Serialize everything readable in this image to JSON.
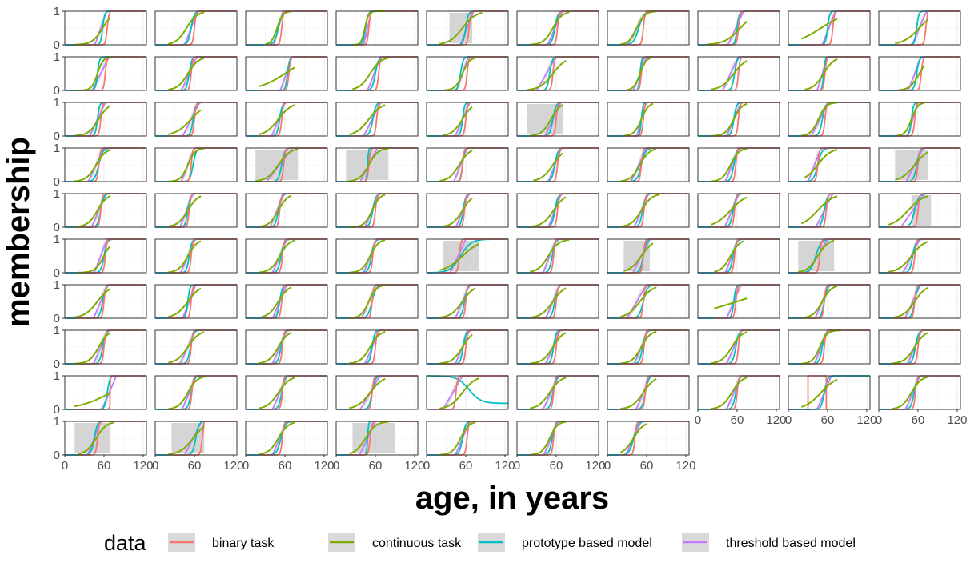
{
  "chart_data": {
    "type": "line",
    "layout": "small-multiples",
    "facet_grid": {
      "rows": 10,
      "columns": 10,
      "panel_count": 97
    },
    "xlabel": "age, in years",
    "ylabel": "membership",
    "xlim": [
      0,
      125
    ],
    "ylim": [
      0,
      1
    ],
    "x_ticks": [
      "0",
      "60",
      "120"
    ],
    "y_ticks": [
      "0",
      "1"
    ],
    "grid": true,
    "legend": {
      "title": "data",
      "position": "bottom",
      "entries": [
        {
          "label": "binary task",
          "color": "#F8766D"
        },
        {
          "label": "continuous task",
          "color": "#7CAE00"
        },
        {
          "label": "prototype based model",
          "color": "#00BFC4"
        },
        {
          "label": "threshold based model",
          "color": "#C77CFF"
        }
      ]
    },
    "series_colors": {
      "binary": "#F8766D",
      "continuous": "#7CAE00",
      "prototype": "#00BFC4",
      "threshold": "#C77CFF",
      "ribbon": "#BEBEBE"
    },
    "panels": [
      {
        "t": 55,
        "tw": 18,
        "bs": 65,
        "cc": 58,
        "cs": 40,
        "lo": 15,
        "hi": 70,
        "ps": 58,
        "pw": 4
      },
      {
        "t": 55,
        "tw": 20,
        "bs": 60,
        "cc": 48,
        "cs": 40,
        "lo": 20,
        "hi": 75,
        "ps": 55,
        "pw": 6
      },
      {
        "t": 50,
        "tw": 14,
        "bs": 55,
        "cc": 48,
        "cs": 22,
        "lo": 30,
        "hi": 70,
        "ps": 50,
        "pw": 8
      },
      {
        "t": 48,
        "tw": 12,
        "bs": 50,
        "cc": 44,
        "cs": 14,
        "lo": 25,
        "hi": 75,
        "ps": 45,
        "pw": 5
      },
      {
        "t": 62,
        "tw": 20,
        "bs": 65,
        "cc": 55,
        "cs": 50,
        "lo": 20,
        "hi": 85,
        "ps": 60,
        "pw": 5,
        "rb": [
          35,
          70
        ]
      },
      {
        "t": 58,
        "tw": 22,
        "bs": 62,
        "cc": 55,
        "cs": 36,
        "lo": 20,
        "hi": 80,
        "ps": 58,
        "pw": 6
      },
      {
        "t": 45,
        "tw": 30,
        "bs": 55,
        "cc": 45,
        "cs": 30,
        "lo": 20,
        "hi": 75,
        "ps": 48,
        "pw": 10
      },
      {
        "t": 58,
        "tw": 24,
        "bs": 62,
        "cc": 65,
        "cs": 60,
        "lo": 15,
        "hi": 75,
        "ps": 60,
        "pw": 4
      },
      {
        "t": 62,
        "tw": 20,
        "bs": 68,
        "cc": 50,
        "cs": 100,
        "lo": 20,
        "hi": 75,
        "ps": 60,
        "pw": 4
      },
      {
        "t": 62,
        "tw": 22,
        "bs": 72,
        "cc": 62,
        "cs": 60,
        "lo": 25,
        "hi": 75,
        "ps": 58,
        "pw": 4
      },
      {
        "t": 55,
        "tw": 26,
        "bs": 62,
        "cc": 50,
        "cs": 22,
        "lo": 15,
        "hi": 75,
        "ps": 50,
        "pw": 4
      },
      {
        "t": 52,
        "tw": 24,
        "bs": 55,
        "cc": 50,
        "cs": 40,
        "lo": 20,
        "hi": 75,
        "ps": 52,
        "pw": 5
      },
      {
        "t": 62,
        "tw": 18,
        "bs": 66,
        "cc": 60,
        "cs": 100,
        "lo": 20,
        "hi": 75,
        "ps": 64,
        "pw": 4
      },
      {
        "t": 58,
        "tw": 20,
        "bs": 65,
        "cc": 52,
        "cs": 42,
        "lo": 25,
        "hi": 80,
        "ps": 60,
        "pw": 6
      },
      {
        "t": 55,
        "tw": 18,
        "bs": 62,
        "cc": 55,
        "cs": 28,
        "lo": 25,
        "hi": 75,
        "ps": 52,
        "pw": 5
      },
      {
        "t": 45,
        "tw": 30,
        "bs": 55,
        "cc": 55,
        "cs": 50,
        "lo": 15,
        "hi": 75,
        "ps": 50,
        "pw": 5
      },
      {
        "t": 50,
        "tw": 20,
        "bs": 52,
        "cc": 50,
        "cs": 24,
        "lo": 30,
        "hi": 70,
        "ps": 50,
        "pw": 3
      },
      {
        "t": 50,
        "tw": 24,
        "bs": 62,
        "cc": 55,
        "cs": 50,
        "lo": 20,
        "hi": 75,
        "ps": 56,
        "pw": 5
      },
      {
        "t": 52,
        "tw": 16,
        "bs": 56,
        "cc": 54,
        "cs": 40,
        "lo": 25,
        "hi": 75,
        "ps": 54,
        "pw": 3
      },
      {
        "t": 55,
        "tw": 20,
        "bs": 65,
        "cc": 62,
        "cs": 36,
        "lo": 30,
        "hi": 70,
        "ps": 58,
        "pw": 5
      },
      {
        "t": 50,
        "tw": 24,
        "bs": 55,
        "cc": 52,
        "cs": 40,
        "lo": 15,
        "hi": 70,
        "ps": 50,
        "pw": 4
      },
      {
        "t": 55,
        "tw": 26,
        "bs": 60,
        "cc": 55,
        "cs": 60,
        "lo": 20,
        "hi": 70,
        "ps": 58,
        "pw": 5
      },
      {
        "t": 50,
        "tw": 20,
        "bs": 55,
        "cc": 50,
        "cs": 50,
        "lo": 20,
        "hi": 75,
        "ps": 52,
        "pw": 5
      },
      {
        "t": 55,
        "tw": 26,
        "bs": 62,
        "cc": 50,
        "cs": 50,
        "lo": 20,
        "hi": 75,
        "ps": 56,
        "pw": 6
      },
      {
        "t": 55,
        "tw": 22,
        "bs": 60,
        "cc": 55,
        "cs": 40,
        "lo": 25,
        "hi": 70,
        "ps": 55,
        "pw": 4
      },
      {
        "t": 55,
        "tw": 24,
        "bs": 60,
        "cc": 52,
        "cs": 36,
        "lo": 20,
        "hi": 70,
        "ps": 55,
        "pw": 6,
        "rb": [
          15,
          70
        ]
      },
      {
        "t": 52,
        "tw": 14,
        "bs": 55,
        "cc": 52,
        "cs": 28,
        "lo": 25,
        "hi": 70,
        "ps": 52,
        "pw": 3
      },
      {
        "t": 55,
        "tw": 22,
        "bs": 62,
        "cc": 55,
        "cs": 32,
        "lo": 20,
        "hi": 75,
        "ps": 55,
        "pw": 5
      },
      {
        "t": 48,
        "tw": 26,
        "bs": 56,
        "cc": 46,
        "cs": 30,
        "lo": 20,
        "hi": 75,
        "ps": 52,
        "pw": 6
      },
      {
        "t": 52,
        "tw": 16,
        "bs": 55,
        "cc": 50,
        "cs": 24,
        "lo": 25,
        "hi": 70,
        "ps": 50,
        "pw": 4
      },
      {
        "t": 48,
        "tw": 24,
        "bs": 52,
        "cc": 48,
        "cs": 38,
        "lo": 15,
        "hi": 70,
        "ps": 52,
        "pw": 8
      },
      {
        "t": 50,
        "tw": 20,
        "bs": 55,
        "cc": 50,
        "cs": 28,
        "lo": 20,
        "hi": 75,
        "ps": 58,
        "pw": 6
      },
      {
        "t": 52,
        "tw": 40,
        "bs": 58,
        "cc": 50,
        "cs": 44,
        "lo": 15,
        "hi": 80,
        "ps": 55,
        "pw": 6,
        "rb": [
          15,
          80
        ]
      },
      {
        "t": 50,
        "tw": 26,
        "bs": 50,
        "cc": 50,
        "cs": 36,
        "lo": 15,
        "hi": 80,
        "ps": 48,
        "pw": 2,
        "rb": [
          15,
          80
        ]
      },
      {
        "t": 52,
        "tw": 20,
        "bs": 55,
        "cc": 50,
        "cs": 40,
        "lo": 20,
        "hi": 70,
        "ps": 55,
        "pw": 4
      },
      {
        "t": 58,
        "tw": 20,
        "bs": 62,
        "cc": 55,
        "cs": 44,
        "lo": 25,
        "hi": 70,
        "ps": 58,
        "pw": 6
      },
      {
        "t": 48,
        "tw": 24,
        "bs": 52,
        "cc": 50,
        "cs": 36,
        "lo": 20,
        "hi": 75,
        "ps": 52,
        "pw": 8
      },
      {
        "t": 52,
        "tw": 20,
        "bs": 58,
        "cc": 50,
        "cs": 32,
        "lo": 20,
        "hi": 75,
        "ps": 55,
        "pw": 6
      },
      {
        "t": 40,
        "tw": 20,
        "bs": 45,
        "cc": 45,
        "cs": 50,
        "lo": 25,
        "hi": 75,
        "ps": 45,
        "pw": 8
      },
      {
        "t": 55,
        "tw": 26,
        "bs": 60,
        "cc": 55,
        "cs": 52,
        "lo": 25,
        "hi": 75,
        "ps": 58,
        "pw": 6,
        "rb": [
          25,
          75
        ]
      },
      {
        "t": 52,
        "tw": 22,
        "bs": 55,
        "cc": 50,
        "cs": 38,
        "lo": 15,
        "hi": 70,
        "ps": 55,
        "pw": 6
      },
      {
        "t": 48,
        "tw": 20,
        "bs": 52,
        "cc": 50,
        "cs": 40,
        "lo": 20,
        "hi": 70,
        "ps": 50,
        "pw": 5
      },
      {
        "t": 48,
        "tw": 22,
        "bs": 52,
        "cc": 50,
        "cs": 36,
        "lo": 20,
        "hi": 70,
        "ps": 50,
        "pw": 6
      },
      {
        "t": 55,
        "tw": 22,
        "bs": 60,
        "cc": 55,
        "cs": 30,
        "lo": 20,
        "hi": 75,
        "ps": 56,
        "pw": 6
      },
      {
        "t": 55,
        "tw": 20,
        "bs": 58,
        "cc": 55,
        "cs": 40,
        "lo": 25,
        "hi": 70,
        "ps": 56,
        "pw": 5
      },
      {
        "t": 58,
        "tw": 20,
        "bs": 62,
        "cc": 56,
        "cs": 44,
        "lo": 20,
        "hi": 75,
        "ps": 58,
        "pw": 6
      },
      {
        "t": 52,
        "tw": 22,
        "bs": 56,
        "cc": 52,
        "cs": 40,
        "lo": 20,
        "hi": 80,
        "ps": 54,
        "pw": 6
      },
      {
        "t": 52,
        "tw": 22,
        "bs": 56,
        "cc": 50,
        "cs": 60,
        "lo": 20,
        "hi": 75,
        "ps": 54,
        "pw": 6
      },
      {
        "t": 55,
        "tw": 26,
        "bs": 58,
        "cc": 45,
        "cs": 60,
        "lo": 20,
        "hi": 75,
        "ps": 55,
        "pw": 6
      },
      {
        "t": 52,
        "tw": 36,
        "bs": 60,
        "cc": 45,
        "cs": 60,
        "lo": 15,
        "hi": 75,
        "ps": 55,
        "pw": 8,
        "rb": [
          50,
          80
        ]
      },
      {
        "t": 55,
        "tw": 20,
        "bs": 62,
        "cc": 60,
        "cs": 34,
        "lo": 20,
        "hi": 70,
        "ps": 60,
        "pw": 6
      },
      {
        "t": 50,
        "tw": 22,
        "bs": 55,
        "cc": 50,
        "cs": 36,
        "lo": 20,
        "hi": 70,
        "ps": 52,
        "pw": 5
      },
      {
        "t": 52,
        "tw": 22,
        "bs": 56,
        "cc": 52,
        "cs": 36,
        "lo": 20,
        "hi": 75,
        "ps": 54,
        "pw": 6
      },
      {
        "t": 52,
        "tw": 20,
        "bs": 56,
        "cc": 52,
        "cs": 32,
        "lo": 20,
        "hi": 75,
        "ps": 54,
        "pw": 6
      },
      {
        "t": 48,
        "tw": 24,
        "bs": 50,
        "cc": 55,
        "cs": 70,
        "lo": 20,
        "hi": 80,
        "ps": 52,
        "pw": 20,
        "rb": [
          25,
          80
        ]
      },
      {
        "t": 50,
        "tw": 20,
        "bs": 56,
        "cc": 48,
        "cs": 40,
        "lo": 20,
        "hi": 80,
        "ps": 54,
        "pw": 6
      },
      {
        "t": 52,
        "tw": 26,
        "bs": 55,
        "cc": 52,
        "cs": 46,
        "lo": 25,
        "hi": 70,
        "ps": 55,
        "pw": 6,
        "rb": [
          25,
          65
        ]
      },
      {
        "t": 52,
        "tw": 20,
        "bs": 56,
        "cc": 50,
        "cs": 36,
        "lo": 25,
        "hi": 70,
        "ps": 54,
        "pw": 6
      },
      {
        "t": 45,
        "tw": 30,
        "bs": 48,
        "cc": 45,
        "cs": 40,
        "lo": 15,
        "hi": 70,
        "ps": 42,
        "pw": 10,
        "rb": [
          15,
          70
        ]
      },
      {
        "t": 50,
        "tw": 26,
        "bs": 55,
        "cc": 50,
        "cs": 50,
        "lo": 15,
        "hi": 75,
        "ps": 52,
        "pw": 6
      },
      {
        "t": 55,
        "tw": 22,
        "bs": 60,
        "cc": 50,
        "cs": 50,
        "lo": 15,
        "hi": 70,
        "ps": 58,
        "pw": 6
      },
      {
        "t": 52,
        "tw": 20,
        "bs": 55,
        "cc": 50,
        "cs": 48,
        "lo": 20,
        "hi": 70,
        "ps": 50,
        "pw": 4
      },
      {
        "t": 52,
        "tw": 22,
        "bs": 55,
        "cc": 50,
        "cs": 40,
        "lo": 25,
        "hi": 70,
        "ps": 52,
        "pw": 5
      },
      {
        "t": 50,
        "tw": 22,
        "bs": 55,
        "cc": 50,
        "cs": 30,
        "lo": 20,
        "hi": 80,
        "ps": 55,
        "pw": 8
      },
      {
        "t": 55,
        "tw": 22,
        "bs": 60,
        "cc": 55,
        "cs": 46,
        "lo": 20,
        "hi": 75,
        "ps": 58,
        "pw": 6
      },
      {
        "t": 55,
        "tw": 22,
        "bs": 60,
        "cc": 55,
        "cs": 46,
        "lo": 20,
        "hi": 75,
        "ps": 58,
        "pw": 6
      },
      {
        "t": 45,
        "tw": 30,
        "bs": 55,
        "cc": 50,
        "cs": 50,
        "lo": 20,
        "hi": 75,
        "ps": 55,
        "pw": 8
      },
      {
        "t": 55,
        "tw": 22,
        "bs": 58,
        "cc": 60,
        "cs": 200,
        "lo": 25,
        "hi": 75,
        "ps": 55,
        "pw": 4
      },
      {
        "t": 52,
        "tw": 22,
        "bs": 55,
        "cc": 52,
        "cs": 36,
        "lo": 20,
        "hi": 75,
        "ps": 55,
        "pw": 6
      },
      {
        "t": 52,
        "tw": 24,
        "bs": 55,
        "cc": 55,
        "cs": 44,
        "lo": 20,
        "hi": 75,
        "ps": 55,
        "pw": 6
      },
      {
        "t": 55,
        "tw": 22,
        "bs": 60,
        "cc": 52,
        "cs": 36,
        "lo": 15,
        "hi": 70,
        "ps": 58,
        "pw": 6
      },
      {
        "t": 50,
        "tw": 24,
        "bs": 55,
        "cc": 50,
        "cs": 44,
        "lo": 20,
        "hi": 75,
        "ps": 54,
        "pw": 6
      },
      {
        "t": 52,
        "tw": 22,
        "bs": 56,
        "cc": 50,
        "cs": 38,
        "lo": 20,
        "hi": 70,
        "ps": 54,
        "pw": 6
      },
      {
        "t": 55,
        "tw": 22,
        "bs": 60,
        "cc": 52,
        "cs": 38,
        "lo": 20,
        "hi": 75,
        "ps": 55,
        "pw": 5
      },
      {
        "t": 55,
        "tw": 22,
        "bs": 60,
        "cc": 55,
        "cs": 40,
        "lo": 20,
        "hi": 70,
        "ps": 56,
        "pw": 5
      },
      {
        "t": 55,
        "tw": 22,
        "bs": 60,
        "cc": 55,
        "cs": 40,
        "lo": 20,
        "hi": 75,
        "ps": 56,
        "pw": 5
      },
      {
        "t": 52,
        "tw": 22,
        "bs": 56,
        "cc": 52,
        "cs": 36,
        "lo": 20,
        "hi": 75,
        "ps": 54,
        "pw": 6
      },
      {
        "t": 55,
        "tw": 22,
        "bs": 62,
        "cc": 52,
        "cs": 40,
        "lo": 20,
        "hi": 75,
        "ps": 58,
        "pw": 6
      },
      {
        "t": 50,
        "tw": 20,
        "bs": 55,
        "cc": 48,
        "cs": 28,
        "lo": 20,
        "hi": 80,
        "ps": 52,
        "pw": 6
      },
      {
        "t": 55,
        "tw": 22,
        "bs": 60,
        "cc": 55,
        "cs": 40,
        "lo": 20,
        "hi": 75,
        "ps": 56,
        "pw": 6
      },
      {
        "t": 68,
        "tw": 22,
        "bs": 72,
        "cc": 70,
        "cs": 120,
        "lo": 15,
        "hi": 70,
        "ps": 65,
        "pw": 5
      },
      {
        "t": 52,
        "tw": 22,
        "bs": 56,
        "cc": 50,
        "cs": 36,
        "lo": 20,
        "hi": 80,
        "ps": 55,
        "pw": 6
      },
      {
        "t": 52,
        "tw": 22,
        "bs": 56,
        "cc": 50,
        "cs": 44,
        "lo": 20,
        "hi": 75,
        "ps": 55,
        "pw": 6
      },
      {
        "t": 52,
        "tw": 30,
        "bs": 55,
        "cc": 52,
        "cs": 50,
        "lo": 20,
        "hi": 75,
        "ps": 55,
        "pw": 6
      },
      {
        "t": 40,
        "tw": 30,
        "bs": 45,
        "cc": 55,
        "cs": 50,
        "lo": 20,
        "hi": 80,
        "ps": 65,
        "pw": 10,
        "inv": true
      },
      {
        "t": 52,
        "tw": 24,
        "bs": 56,
        "cc": 50,
        "cs": 44,
        "lo": 20,
        "hi": 75,
        "ps": 55,
        "pw": 6
      },
      {
        "t": 55,
        "tw": 22,
        "bs": 58,
        "cc": 55,
        "cs": 44,
        "lo": 20,
        "hi": 75,
        "ps": 58,
        "pw": 6
      },
      {
        "t": 55,
        "tw": 22,
        "bs": 60,
        "cc": 52,
        "cs": 40,
        "lo": 20,
        "hi": 75,
        "ps": 58,
        "pw": 6
      },
      {
        "t": 55,
        "tw": 22,
        "bs": 30,
        "cc": 50,
        "cs": 60,
        "lo": 20,
        "hi": 75,
        "ps": 55,
        "pw": 6,
        "bc": [
          30,
          58
        ]
      },
      {
        "t": 52,
        "tw": 22,
        "bs": 56,
        "cc": 50,
        "cs": 38,
        "lo": 20,
        "hi": 75,
        "ps": 54,
        "pw": 6
      },
      {
        "t": 45,
        "tw": 20,
        "bs": 50,
        "cc": 48,
        "cs": 40,
        "lo": 20,
        "hi": 75,
        "ps": 45,
        "pw": 6,
        "rb": [
          15,
          70
        ]
      },
      {
        "t": 58,
        "tw": 26,
        "bs": 72,
        "cc": 58,
        "cs": 50,
        "lo": 20,
        "hi": 75,
        "ps": 62,
        "pw": 6,
        "rb": [
          25,
          75
        ]
      },
      {
        "t": 52,
        "tw": 22,
        "bs": 56,
        "cc": 50,
        "cs": 38,
        "lo": 20,
        "hi": 75,
        "ps": 54,
        "pw": 8
      },
      {
        "t": 48,
        "tw": 24,
        "bs": 52,
        "cc": 45,
        "cs": 40,
        "lo": 20,
        "hi": 80,
        "ps": 48,
        "pw": 2,
        "rb": [
          25,
          90
        ]
      },
      {
        "t": 55,
        "tw": 22,
        "bs": 62,
        "cc": 52,
        "cs": 32,
        "lo": 20,
        "hi": 75,
        "ps": 55,
        "pw": 6
      },
      {
        "t": 52,
        "tw": 22,
        "bs": 56,
        "cc": 50,
        "cs": 30,
        "lo": 20,
        "hi": 75,
        "ps": 54,
        "pw": 6
      },
      {
        "t": 40,
        "tw": 24,
        "bs": 42,
        "cc": 40,
        "cs": 40,
        "lo": 20,
        "hi": 60,
        "ps": 40,
        "pw": 8
      }
    ]
  }
}
